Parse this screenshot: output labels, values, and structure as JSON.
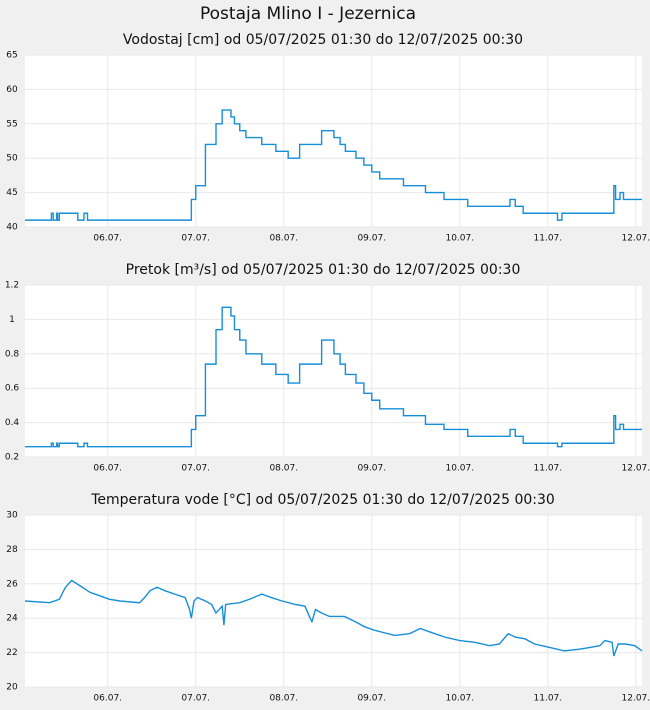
{
  "title": "Postaja Mlino I - Jezernica",
  "chart_data": [
    {
      "type": "line",
      "title": "Vodostaj [cm] od 05/07/2025 01:30 do 12/07/2025 00:30",
      "step": true,
      "color": "#168ed8",
      "grid": true,
      "x": [
        5.06,
        5.36,
        5.38,
        5.42,
        5.43,
        5.45,
        5.66,
        5.73,
        5.77,
        6.95,
        7.0,
        7.11,
        7.23,
        7.3,
        7.4,
        7.44,
        7.5,
        7.57,
        7.75,
        7.91,
        8.05,
        8.18,
        8.43,
        8.57,
        8.64,
        8.7,
        8.82,
        8.91,
        9.0,
        9.09,
        9.36,
        9.61,
        9.82,
        10.09,
        10.57,
        10.63,
        10.72,
        11.11,
        11.16,
        11.75,
        11.77,
        11.82,
        11.86,
        12.07
      ],
      "values": [
        41,
        42,
        41,
        42,
        41,
        42,
        41,
        42,
        41,
        44,
        46,
        52,
        55,
        57,
        56,
        55,
        54,
        53,
        52,
        51,
        50,
        52,
        54,
        53,
        52,
        51,
        50,
        49,
        48,
        47,
        46,
        45,
        44,
        43,
        44,
        43,
        42,
        41,
        42,
        46,
        44,
        45,
        44,
        44
      ],
      "xlim": [
        5.06,
        12.07
      ],
      "ylim": [
        40,
        65
      ],
      "xticks": [
        {
          "value": 6,
          "label": "06.07."
        },
        {
          "value": 7,
          "label": "07.07."
        },
        {
          "value": 8,
          "label": "08.07."
        },
        {
          "value": 9,
          "label": "09.07."
        },
        {
          "value": 10,
          "label": "10.07."
        },
        {
          "value": 11,
          "label": "11.07."
        },
        {
          "value": 12,
          "label": "12.07."
        }
      ],
      "yticks": [
        40,
        45,
        50,
        55,
        60,
        65
      ]
    },
    {
      "type": "line",
      "title": "Pretok [m³/s] od 05/07/2025 01:30 do 12/07/2025 00:30",
      "step": true,
      "color": "#168ed8",
      "grid": true,
      "x": [
        5.06,
        5.36,
        5.38,
        5.42,
        5.43,
        5.45,
        5.66,
        5.73,
        5.77,
        6.95,
        7.0,
        7.11,
        7.23,
        7.3,
        7.4,
        7.44,
        7.5,
        7.57,
        7.75,
        7.91,
        8.05,
        8.18,
        8.43,
        8.57,
        8.64,
        8.7,
        8.82,
        8.91,
        9.0,
        9.09,
        9.36,
        9.61,
        9.82,
        10.09,
        10.57,
        10.63,
        10.72,
        11.11,
        11.16,
        11.75,
        11.77,
        11.82,
        11.86,
        12.07
      ],
      "values": [
        0.26,
        0.28,
        0.26,
        0.28,
        0.26,
        0.28,
        0.26,
        0.28,
        0.26,
        0.36,
        0.44,
        0.74,
        0.94,
        1.07,
        1.02,
        0.94,
        0.88,
        0.8,
        0.74,
        0.68,
        0.63,
        0.74,
        0.88,
        0.8,
        0.74,
        0.68,
        0.63,
        0.57,
        0.53,
        0.48,
        0.44,
        0.39,
        0.36,
        0.32,
        0.36,
        0.32,
        0.28,
        0.26,
        0.28,
        0.44,
        0.36,
        0.39,
        0.36,
        0.36
      ],
      "xlim": [
        5.06,
        12.07
      ],
      "ylim": [
        0.2,
        1.2
      ],
      "xticks": [
        {
          "value": 6,
          "label": "06.07."
        },
        {
          "value": 7,
          "label": "07.07."
        },
        {
          "value": 8,
          "label": "08.07."
        },
        {
          "value": 9,
          "label": "09.07."
        },
        {
          "value": 10,
          "label": "10.07."
        },
        {
          "value": 11,
          "label": "11.07."
        },
        {
          "value": 12,
          "label": "12.07."
        }
      ],
      "yticks": [
        0.2,
        0.4,
        0.6,
        0.8,
        1,
        1.2
      ]
    },
    {
      "type": "line",
      "title": "Temperatura vode [°C] od 05/07/2025 01:30 do 12/07/2025 00:30",
      "step": false,
      "color": "#168ed8",
      "grid": true,
      "x": [
        5.06,
        5.34,
        5.45,
        5.52,
        5.59,
        5.68,
        5.8,
        5.91,
        6.02,
        6.14,
        6.36,
        6.42,
        6.48,
        6.56,
        6.65,
        6.76,
        6.88,
        6.93,
        6.95,
        6.98,
        7.02,
        7.11,
        7.18,
        7.23,
        7.3,
        7.32,
        7.34,
        7.5,
        7.61,
        7.75,
        7.86,
        7.98,
        8.13,
        8.24,
        8.3,
        8.32,
        8.36,
        8.43,
        8.52,
        8.69,
        8.81,
        8.92,
        9.03,
        9.26,
        9.43,
        9.55,
        9.66,
        9.83,
        10.0,
        10.17,
        10.34,
        10.45,
        10.55,
        10.63,
        10.74,
        10.85,
        11.02,
        11.19,
        11.36,
        11.48,
        11.59,
        11.65,
        11.73,
        11.75,
        11.8,
        11.88,
        11.99,
        12.07
      ],
      "values": [
        25.0,
        24.9,
        25.1,
        25.8,
        26.2,
        25.9,
        25.5,
        25.3,
        25.1,
        25.0,
        24.9,
        25.2,
        25.6,
        25.8,
        25.6,
        25.4,
        25.2,
        24.5,
        24.0,
        25.0,
        25.2,
        25.0,
        24.8,
        24.3,
        24.7,
        23.6,
        24.8,
        24.9,
        25.1,
        25.4,
        25.2,
        25.0,
        24.8,
        24.7,
        24.0,
        23.8,
        24.5,
        24.3,
        24.1,
        24.1,
        23.8,
        23.5,
        23.3,
        23.0,
        23.1,
        23.4,
        23.2,
        22.9,
        22.7,
        22.6,
        22.4,
        22.5,
        23.1,
        22.9,
        22.8,
        22.5,
        22.3,
        22.1,
        22.2,
        22.3,
        22.4,
        22.7,
        22.6,
        21.8,
        22.5,
        22.5,
        22.4,
        22.1
      ],
      "xlim": [
        5.06,
        12.07
      ],
      "ylim": [
        20,
        30
      ],
      "xticks": [
        {
          "value": 6,
          "label": "06.07."
        },
        {
          "value": 7,
          "label": "07.07."
        },
        {
          "value": 8,
          "label": "08.07."
        },
        {
          "value": 9,
          "label": "09.07."
        },
        {
          "value": 10,
          "label": "10.07."
        },
        {
          "value": 11,
          "label": "11.07."
        },
        {
          "value": 12,
          "label": "12.07."
        }
      ],
      "yticks": [
        20,
        22,
        24,
        26,
        28,
        30
      ]
    }
  ]
}
